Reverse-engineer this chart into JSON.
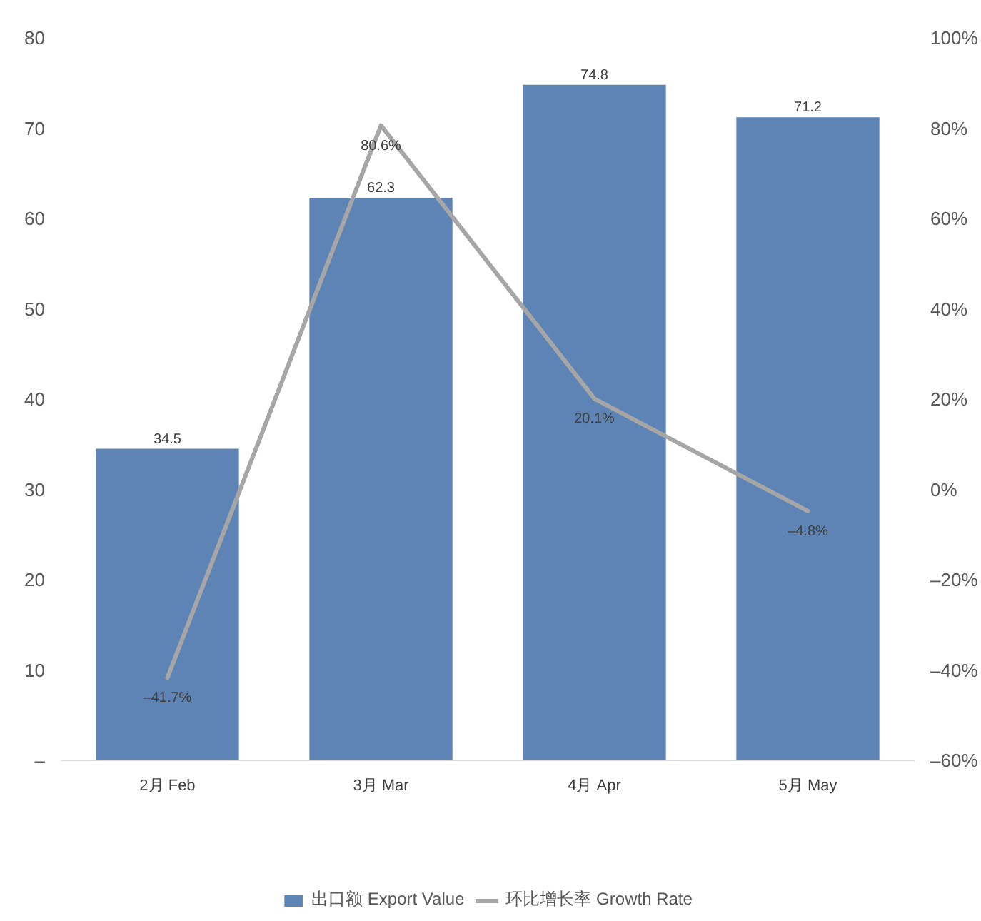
{
  "chart_data": {
    "type": "bar",
    "categories": [
      "2月 Feb",
      "3月 Mar",
      "4月 Apr",
      "5月 May"
    ],
    "series": [
      {
        "name": "出口额 Export Value",
        "color": "#5e84b6",
        "values": [
          34.5,
          62.3,
          74.8,
          71.2
        ],
        "value_labels": [
          "34.5",
          "62.3",
          "74.8",
          "71.2"
        ]
      },
      {
        "name": "环比增长率 Growth Rate",
        "type": "line",
        "axis": "y2",
        "color": "#a6a6a6",
        "values": [
          -41.7,
          80.6,
          20.1,
          -4.8
        ],
        "value_labels": [
          "–41.7%",
          "80.6%",
          "20.1%",
          "–4.8%"
        ]
      }
    ],
    "ylim": [
      0,
      80
    ],
    "yticks": [
      {
        "value": 0,
        "label": "–"
      },
      10,
      20,
      30,
      40,
      50,
      60,
      70,
      80
    ],
    "y2lim": [
      -60,
      100
    ],
    "y2ticks": [
      {
        "value": -60,
        "label": "–60%"
      },
      {
        "value": -40,
        "label": "–40%"
      },
      {
        "value": -20,
        "label": "–20%"
      },
      {
        "value": 0,
        "label": "0%"
      },
      {
        "value": 20,
        "label": "20%"
      },
      {
        "value": 40,
        "label": "40%"
      },
      {
        "value": 60,
        "label": "60%"
      },
      {
        "value": 80,
        "label": "80%"
      },
      {
        "value": 100,
        "label": "100%"
      }
    ],
    "grid": false,
    "legend": "bottom"
  }
}
